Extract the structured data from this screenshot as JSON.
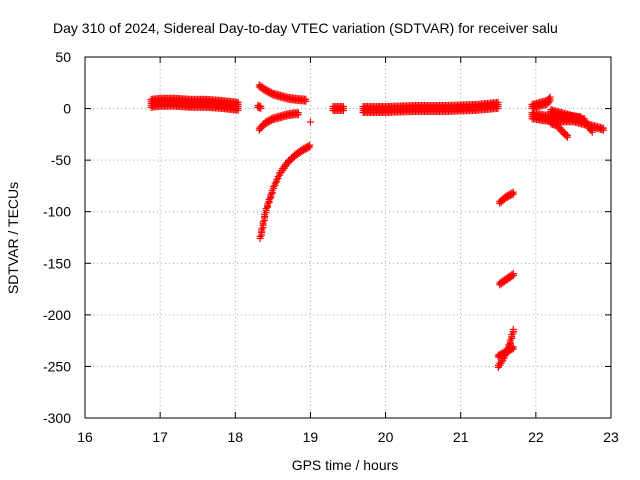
{
  "chart_data": {
    "type": "scatter",
    "title": "Day 310 of 2024, Sidereal Day-to-day VTEC variation (SDTVAR) for receiver salu",
    "xlabel": "GPS time / hours",
    "ylabel": "SDTVAR / TECUs",
    "xlim": [
      16,
      23
    ],
    "ylim": [
      -300,
      50
    ],
    "xticks": [
      16,
      17,
      18,
      19,
      20,
      21,
      22,
      23
    ],
    "yticks": [
      50,
      0,
      -50,
      -100,
      -150,
      -200,
      -250,
      -300
    ],
    "grid": true,
    "marker": "+",
    "color": "#ff0000",
    "segments": [
      {
        "x": [
          16.88,
          17.0,
          17.2,
          17.4,
          17.6,
          17.8,
          18.05
        ],
        "y": [
          5,
          6,
          6,
          5,
          5,
          4,
          2
        ],
        "band": [
          -4,
          4
        ]
      },
      {
        "x": [
          18.3,
          18.35
        ],
        "y": [
          2,
          1
        ],
        "band": [
          -1,
          1
        ]
      },
      {
        "x": [
          18.32,
          18.4,
          18.5,
          18.6,
          18.7,
          18.8,
          18.95
        ],
        "y": [
          22,
          18,
          14,
          12,
          10,
          9,
          8
        ],
        "band": [
          -1,
          1
        ]
      },
      {
        "x": [
          18.32,
          18.4,
          18.5,
          18.6,
          18.7,
          18.8,
          18.85
        ],
        "y": [
          -20,
          -14,
          -10,
          -8,
          -6,
          -5,
          -5
        ],
        "band": [
          -1,
          1
        ]
      },
      {
        "x": [
          18.33,
          18.4,
          18.5,
          18.6,
          18.7,
          18.8,
          18.9,
          19.0
        ],
        "y": [
          -125,
          -100,
          -78,
          -62,
          -52,
          -45,
          -40,
          -36
        ],
        "band": [
          -1,
          1
        ]
      },
      {
        "x": [
          19.0
        ],
        "y": [
          -13
        ],
        "band": [
          0,
          0
        ]
      },
      {
        "x": [
          19.3,
          19.45
        ],
        "y": [
          0,
          0
        ],
        "band": [
          -2,
          2
        ]
      },
      {
        "x": [
          19.7,
          20.0,
          20.4,
          20.8,
          21.2,
          21.5
        ],
        "y": [
          -1,
          -1,
          0,
          0,
          1,
          3
        ],
        "band": [
          -3,
          3
        ]
      },
      {
        "x": [
          21.52,
          21.6,
          21.7
        ],
        "y": [
          -91,
          -86,
          -82
        ],
        "band": [
          -1,
          1
        ]
      },
      {
        "x": [
          21.52,
          21.6,
          21.7
        ],
        "y": [
          -170,
          -166,
          -161
        ],
        "band": [
          -1,
          1
        ]
      },
      {
        "x": [
          21.5,
          21.55,
          21.6,
          21.65,
          21.7
        ],
        "y": [
          -250,
          -245,
          -238,
          -228,
          -215
        ],
        "band": [
          -1,
          1
        ]
      },
      {
        "x": [
          21.5,
          21.6,
          21.7
        ],
        "y": [
          -240,
          -236,
          -232
        ],
        "band": [
          -1,
          1
        ]
      },
      {
        "x": [
          21.95,
          22.05,
          22.15,
          22.2
        ],
        "y": [
          2,
          4,
          6,
          10
        ],
        "band": [
          -2,
          2
        ]
      },
      {
        "x": [
          21.95,
          22.1,
          22.3,
          22.5,
          22.65
        ],
        "y": [
          -7,
          -9,
          -10,
          -10,
          -13
        ],
        "band": [
          -3,
          3
        ]
      },
      {
        "x": [
          22.2,
          22.28,
          22.35,
          22.42
        ],
        "y": [
          -14,
          -16,
          -22,
          -27
        ],
        "band": [
          -1,
          1
        ]
      },
      {
        "x": [
          22.2,
          22.35,
          22.5,
          22.6
        ],
        "y": [
          -2,
          -5,
          -8,
          -9
        ],
        "band": [
          -1,
          1
        ]
      },
      {
        "x": [
          22.65,
          22.75
        ],
        "y": [
          -13,
          -22
        ],
        "band": [
          -1,
          1
        ]
      },
      {
        "x": [
          22.7,
          22.8,
          22.9
        ],
        "y": [
          -16,
          -18,
          -20
        ],
        "band": [
          -1,
          1
        ]
      }
    ]
  }
}
